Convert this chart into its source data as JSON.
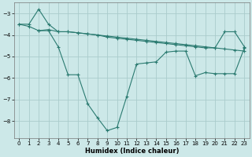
{
  "line1_x": [
    0,
    1,
    2,
    3,
    4,
    5,
    6,
    7,
    8,
    9,
    10,
    11,
    12,
    13,
    14,
    15,
    16,
    17,
    18,
    19,
    20,
    21,
    22,
    23
  ],
  "line1_y": [
    -3.5,
    -3.5,
    -2.8,
    -3.5,
    -3.85,
    -3.85,
    -3.9,
    -3.95,
    -4.0,
    -4.05,
    -4.1,
    -4.15,
    -4.2,
    -4.25,
    -4.3,
    -4.35,
    -4.4,
    -4.45,
    -4.5,
    -4.55,
    -4.6,
    -4.65,
    -4.7,
    -4.75
  ],
  "line2_x": [
    2,
    3,
    4,
    5,
    6,
    7,
    8,
    9,
    10,
    11,
    12,
    13,
    14,
    15,
    16,
    17,
    18,
    19,
    20,
    21,
    22,
    23
  ],
  "line2_y": [
    -3.8,
    -3.75,
    -3.85,
    -3.85,
    -3.9,
    -3.95,
    -4.0,
    -4.1,
    -4.15,
    -4.2,
    -4.25,
    -4.3,
    -4.35,
    -4.4,
    -4.45,
    -4.5,
    -4.55,
    -4.6,
    -4.6,
    -3.85,
    -3.85,
    -4.55
  ],
  "line3_x": [
    0,
    1,
    2,
    3,
    4,
    5,
    6,
    7,
    8,
    9,
    10,
    11,
    12,
    13,
    14,
    15,
    16,
    17,
    18,
    19,
    20,
    21,
    22,
    23
  ],
  "line3_y": [
    -3.5,
    -3.6,
    -3.8,
    -3.8,
    -4.55,
    -5.85,
    -5.85,
    -7.2,
    -7.85,
    -8.45,
    -8.3,
    -6.85,
    -5.35,
    -5.3,
    -5.25,
    -4.8,
    -4.75,
    -4.75,
    -5.9,
    -5.75,
    -5.8,
    -5.8,
    -5.8,
    -4.6
  ],
  "line_color": "#2a7a70",
  "bg_color": "#cce8e8",
  "grid_color": "#aacccc",
  "xlabel": "Humidex (Indice chaleur)",
  "ylim": [
    -8.8,
    -2.5
  ],
  "xlim": [
    -0.5,
    23.5
  ],
  "yticks": [
    -8,
    -7,
    -6,
    -5,
    -4,
    -3
  ],
  "xticks": [
    0,
    1,
    2,
    3,
    4,
    5,
    6,
    7,
    8,
    9,
    10,
    11,
    12,
    13,
    14,
    15,
    16,
    17,
    18,
    19,
    20,
    21,
    22,
    23
  ],
  "xlabel_fontsize": 6.0,
  "tick_fontsize": 5.0,
  "linewidth": 0.8,
  "markersize": 2.5
}
